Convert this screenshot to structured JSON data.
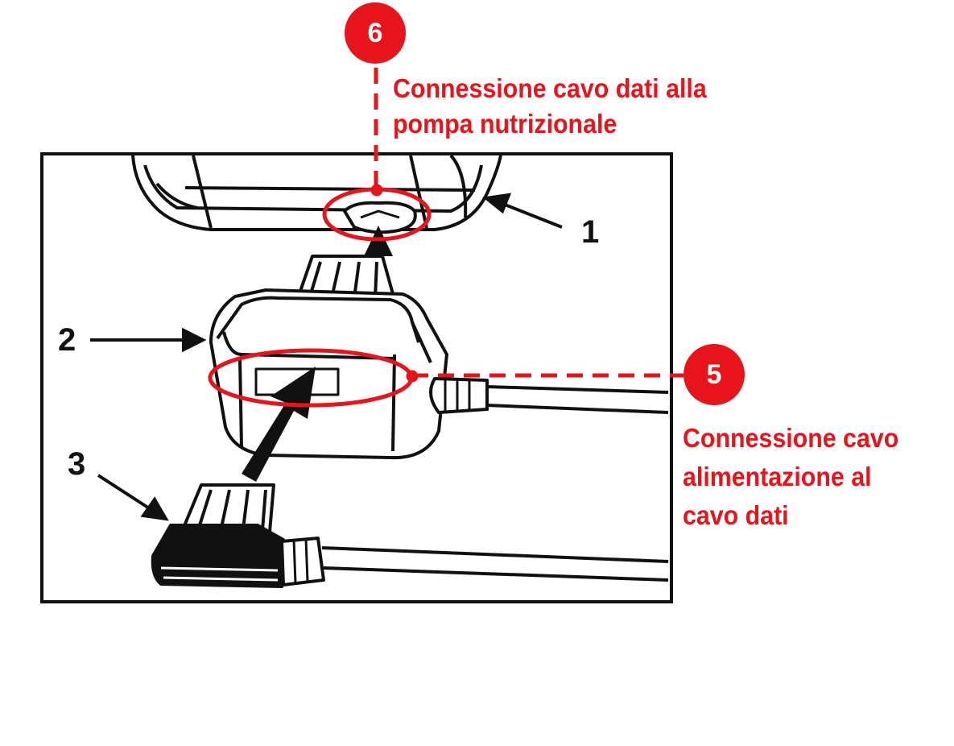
{
  "callouts": [
    {
      "number": "6",
      "text_lines": [
        "Connessione cavo dati alla",
        "pompa nutrizionale"
      ]
    },
    {
      "number": "5",
      "text_lines": [
        "Connessione cavo",
        "alimentazione al",
        "cavo dati"
      ]
    }
  ],
  "parts": [
    {
      "number": "1"
    },
    {
      "number": "2"
    },
    {
      "number": "3"
    }
  ],
  "colors": {
    "accent": "#e8141b",
    "line_art": "#111111",
    "background": "#ffffff"
  }
}
